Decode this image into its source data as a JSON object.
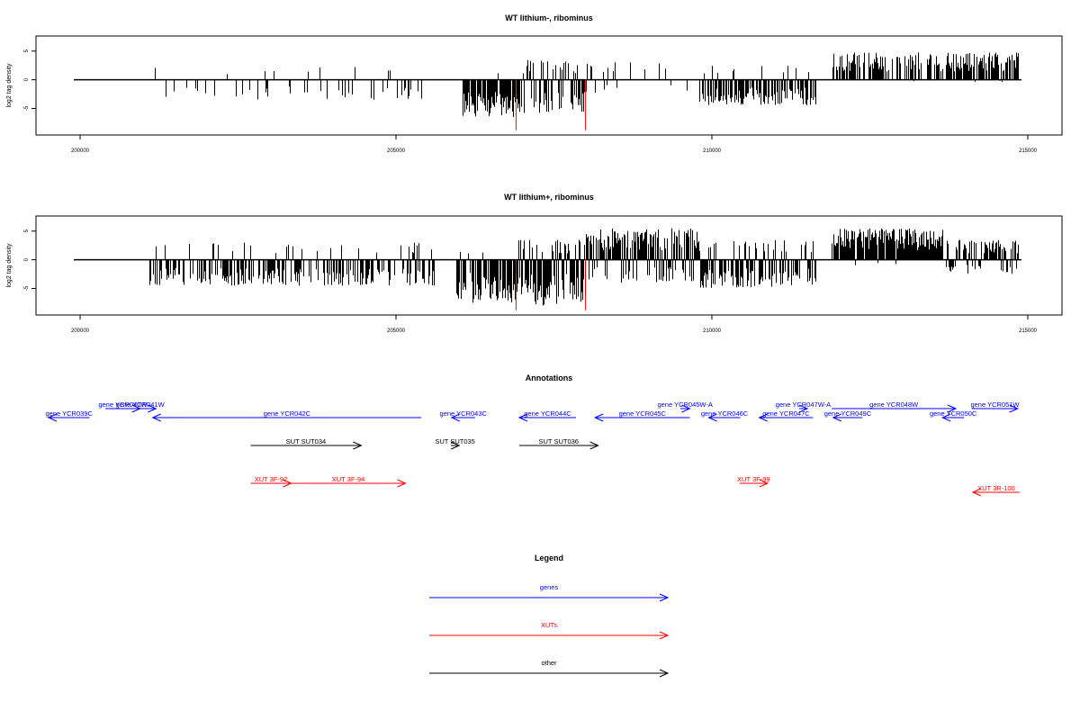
{
  "chart_data": [
    {
      "type": "bar",
      "title": "WT lithium-, ribominus",
      "ylabel": "log2 tag density",
      "xlim": [
        200000,
        215000
      ],
      "ylim": [
        -9,
        7
      ],
      "xticks": [
        "200000",
        "205000",
        "210000",
        "215000"
      ],
      "yticks": [
        "-5",
        "0",
        "5"
      ],
      "grid": false,
      "baseline": [
        199900,
        214900
      ],
      "series": [
        {
          "color": "#000000",
          "segments": [
            {
              "from": 201100,
              "to": 205400,
              "density": 0.18,
              "amp_neg": 3.5,
              "amp_pos": 2.5,
              "neg_bias": 0.86
            },
            {
              "from": 206050,
              "to": 206950,
              "density": 0.85,
              "amp_neg": 6.5,
              "amp_pos": 1.5,
              "neg_bias": 0.97
            },
            {
              "from": 206950,
              "to": 208000,
              "density": 0.7,
              "amp_neg": 5.8,
              "amp_pos": 3.5,
              "neg_bias": 0.65
            },
            {
              "from": 208000,
              "to": 209200,
              "density": 0.12,
              "amp_neg": 2.5,
              "amp_pos": 3.2,
              "neg_bias": 0.35
            },
            {
              "from": 209200,
              "to": 209650,
              "density": 0.05,
              "amp_neg": 2.0,
              "amp_pos": 4.5,
              "neg_bias": 0.3
            },
            {
              "from": 209750,
              "to": 211650,
              "density": 0.7,
              "amp_neg": 4.5,
              "amp_pos": 2.5,
              "neg_bias": 0.92
            },
            {
              "from": 211900,
              "to": 213650,
              "density": 0.65,
              "amp_neg": 0.4,
              "amp_pos": 4.8,
              "neg_bias": 0.02
            },
            {
              "from": 213700,
              "to": 214850,
              "density": 0.85,
              "amp_neg": 0.4,
              "amp_pos": 4.8,
              "neg_bias": 0.02
            }
          ]
        },
        {
          "color": "#ff0000",
          "bars": [
            {
              "x": 206900,
              "y": -8.8
            },
            {
              "x": 208000,
              "y": -8.8
            }
          ]
        }
      ]
    },
    {
      "type": "bar",
      "title": "WT lithium+, ribominus",
      "ylabel": "log2 tag density",
      "xlim": [
        200000,
        215000
      ],
      "ylim": [
        -9,
        7
      ],
      "xticks": [
        "200000",
        "205000",
        "210000",
        "215000"
      ],
      "yticks": [
        "-5",
        "0",
        "5"
      ],
      "grid": false,
      "baseline": [
        199900,
        214900
      ],
      "series": [
        {
          "color": "#000000",
          "segments": [
            {
              "from": 201100,
              "to": 205600,
              "density": 0.55,
              "amp_neg": 4.5,
              "amp_pos": 3.0,
              "neg_bias": 0.85
            },
            {
              "from": 205950,
              "to": 206850,
              "density": 0.85,
              "amp_neg": 7.5,
              "amp_pos": 2.0,
              "neg_bias": 0.97
            },
            {
              "from": 206850,
              "to": 208000,
              "density": 1.0,
              "amp_neg": 8.0,
              "amp_pos": 3.5,
              "neg_bias": 0.85
            },
            {
              "from": 208000,
              "to": 209800,
              "density": 0.95,
              "amp_neg": 4.0,
              "amp_pos": 5.5,
              "neg_bias": 0.25
            },
            {
              "from": 209800,
              "to": 211650,
              "density": 0.75,
              "amp_neg": 5.0,
              "amp_pos": 3.5,
              "neg_bias": 0.75
            },
            {
              "from": 211900,
              "to": 213650,
              "density": 0.95,
              "amp_neg": 1.0,
              "amp_pos": 5.5,
              "neg_bias": 0.05
            },
            {
              "from": 213700,
              "to": 214850,
              "density": 0.8,
              "amp_neg": 2.5,
              "amp_pos": 3.5,
              "neg_bias": 0.3
            }
          ]
        },
        {
          "color": "#ff0000",
          "bars": [
            {
              "x": 206900,
              "y": -8.8
            },
            {
              "x": 208000,
              "y": -8.8
            }
          ]
        }
      ]
    },
    {
      "type": "diagram",
      "title": "Annotations",
      "xlim": [
        200000,
        215000
      ],
      "features": [
        {
          "label": "gene YCR039C",
          "start": 200150,
          "end": 199500,
          "color": "#0000ff",
          "row": 1
        },
        {
          "label": "gene YCR040W",
          "start": 200400,
          "end": 200950,
          "color": "#0000ff",
          "row": 0
        },
        {
          "label": "gene YCR041W",
          "start": 200700,
          "end": 201200,
          "color": "#0000ff",
          "row": 0
        },
        {
          "label": "gene YCR042C",
          "start": 205400,
          "end": 201150,
          "color": "#0000ff",
          "row": 1
        },
        {
          "label": "gene YCR043C",
          "start": 206250,
          "end": 205880,
          "color": "#0000ff",
          "row": 1
        },
        {
          "label": "gene YCR044C",
          "start": 207850,
          "end": 206950,
          "color": "#0000ff",
          "row": 1
        },
        {
          "label": "gene YCR045W-A",
          "start": 209500,
          "end": 209650,
          "color": "#0000ff",
          "row": 0
        },
        {
          "label": "gene YCR045C",
          "start": 209650,
          "end": 208150,
          "color": "#0000ff",
          "row": 1
        },
        {
          "label": "gene YCR046C",
          "start": 210450,
          "end": 209950,
          "color": "#0000ff",
          "row": 1
        },
        {
          "label": "gene YCR047W-A",
          "start": 211380,
          "end": 211510,
          "color": "#0000ff",
          "row": 0
        },
        {
          "label": "gene YCR047C",
          "start": 211600,
          "end": 210750,
          "color": "#0000ff",
          "row": 1
        },
        {
          "label": "gene YCR049C",
          "start": 212380,
          "end": 211920,
          "color": "#0000ff",
          "row": 1
        },
        {
          "label": "gene YCR048W",
          "start": 211900,
          "end": 213860,
          "color": "#0000ff",
          "row": 0
        },
        {
          "label": "gene YCR050C",
          "start": 213990,
          "end": 213650,
          "color": "#0000ff",
          "row": 1
        },
        {
          "label": "gene YCR051W",
          "start": 214120,
          "end": 214840,
          "color": "#0000ff",
          "row": 0
        },
        {
          "label": "SUT SUT034",
          "start": 202700,
          "end": 204450,
          "color": "#000000",
          "row": 3
        },
        {
          "label": "SUT SUT035",
          "start": 205870,
          "end": 206000,
          "color": "#000000",
          "row": 3
        },
        {
          "label": "SUT SUT036",
          "start": 206950,
          "end": 208200,
          "color": "#000000",
          "row": 3
        },
        {
          "label": "XUT 3F-92",
          "start": 202700,
          "end": 203340,
          "color": "#ff0000",
          "row": 5
        },
        {
          "label": "XUT 3F-94",
          "start": 203340,
          "end": 205150,
          "color": "#ff0000",
          "row": 5
        },
        {
          "label": "XUT 3F-99",
          "start": 210440,
          "end": 210880,
          "color": "#ff0000",
          "row": 5
        },
        {
          "label": "XUT 3R-100",
          "start": 214870,
          "end": 214130,
          "color": "#ff0000",
          "row": 6
        }
      ]
    },
    {
      "type": "legend",
      "title": "Legend",
      "entries": [
        {
          "label": "genes",
          "color": "#0000ff"
        },
        {
          "label": "XUTs",
          "color": "#ff0000"
        },
        {
          "label": "other",
          "color": "#000000"
        }
      ]
    }
  ]
}
